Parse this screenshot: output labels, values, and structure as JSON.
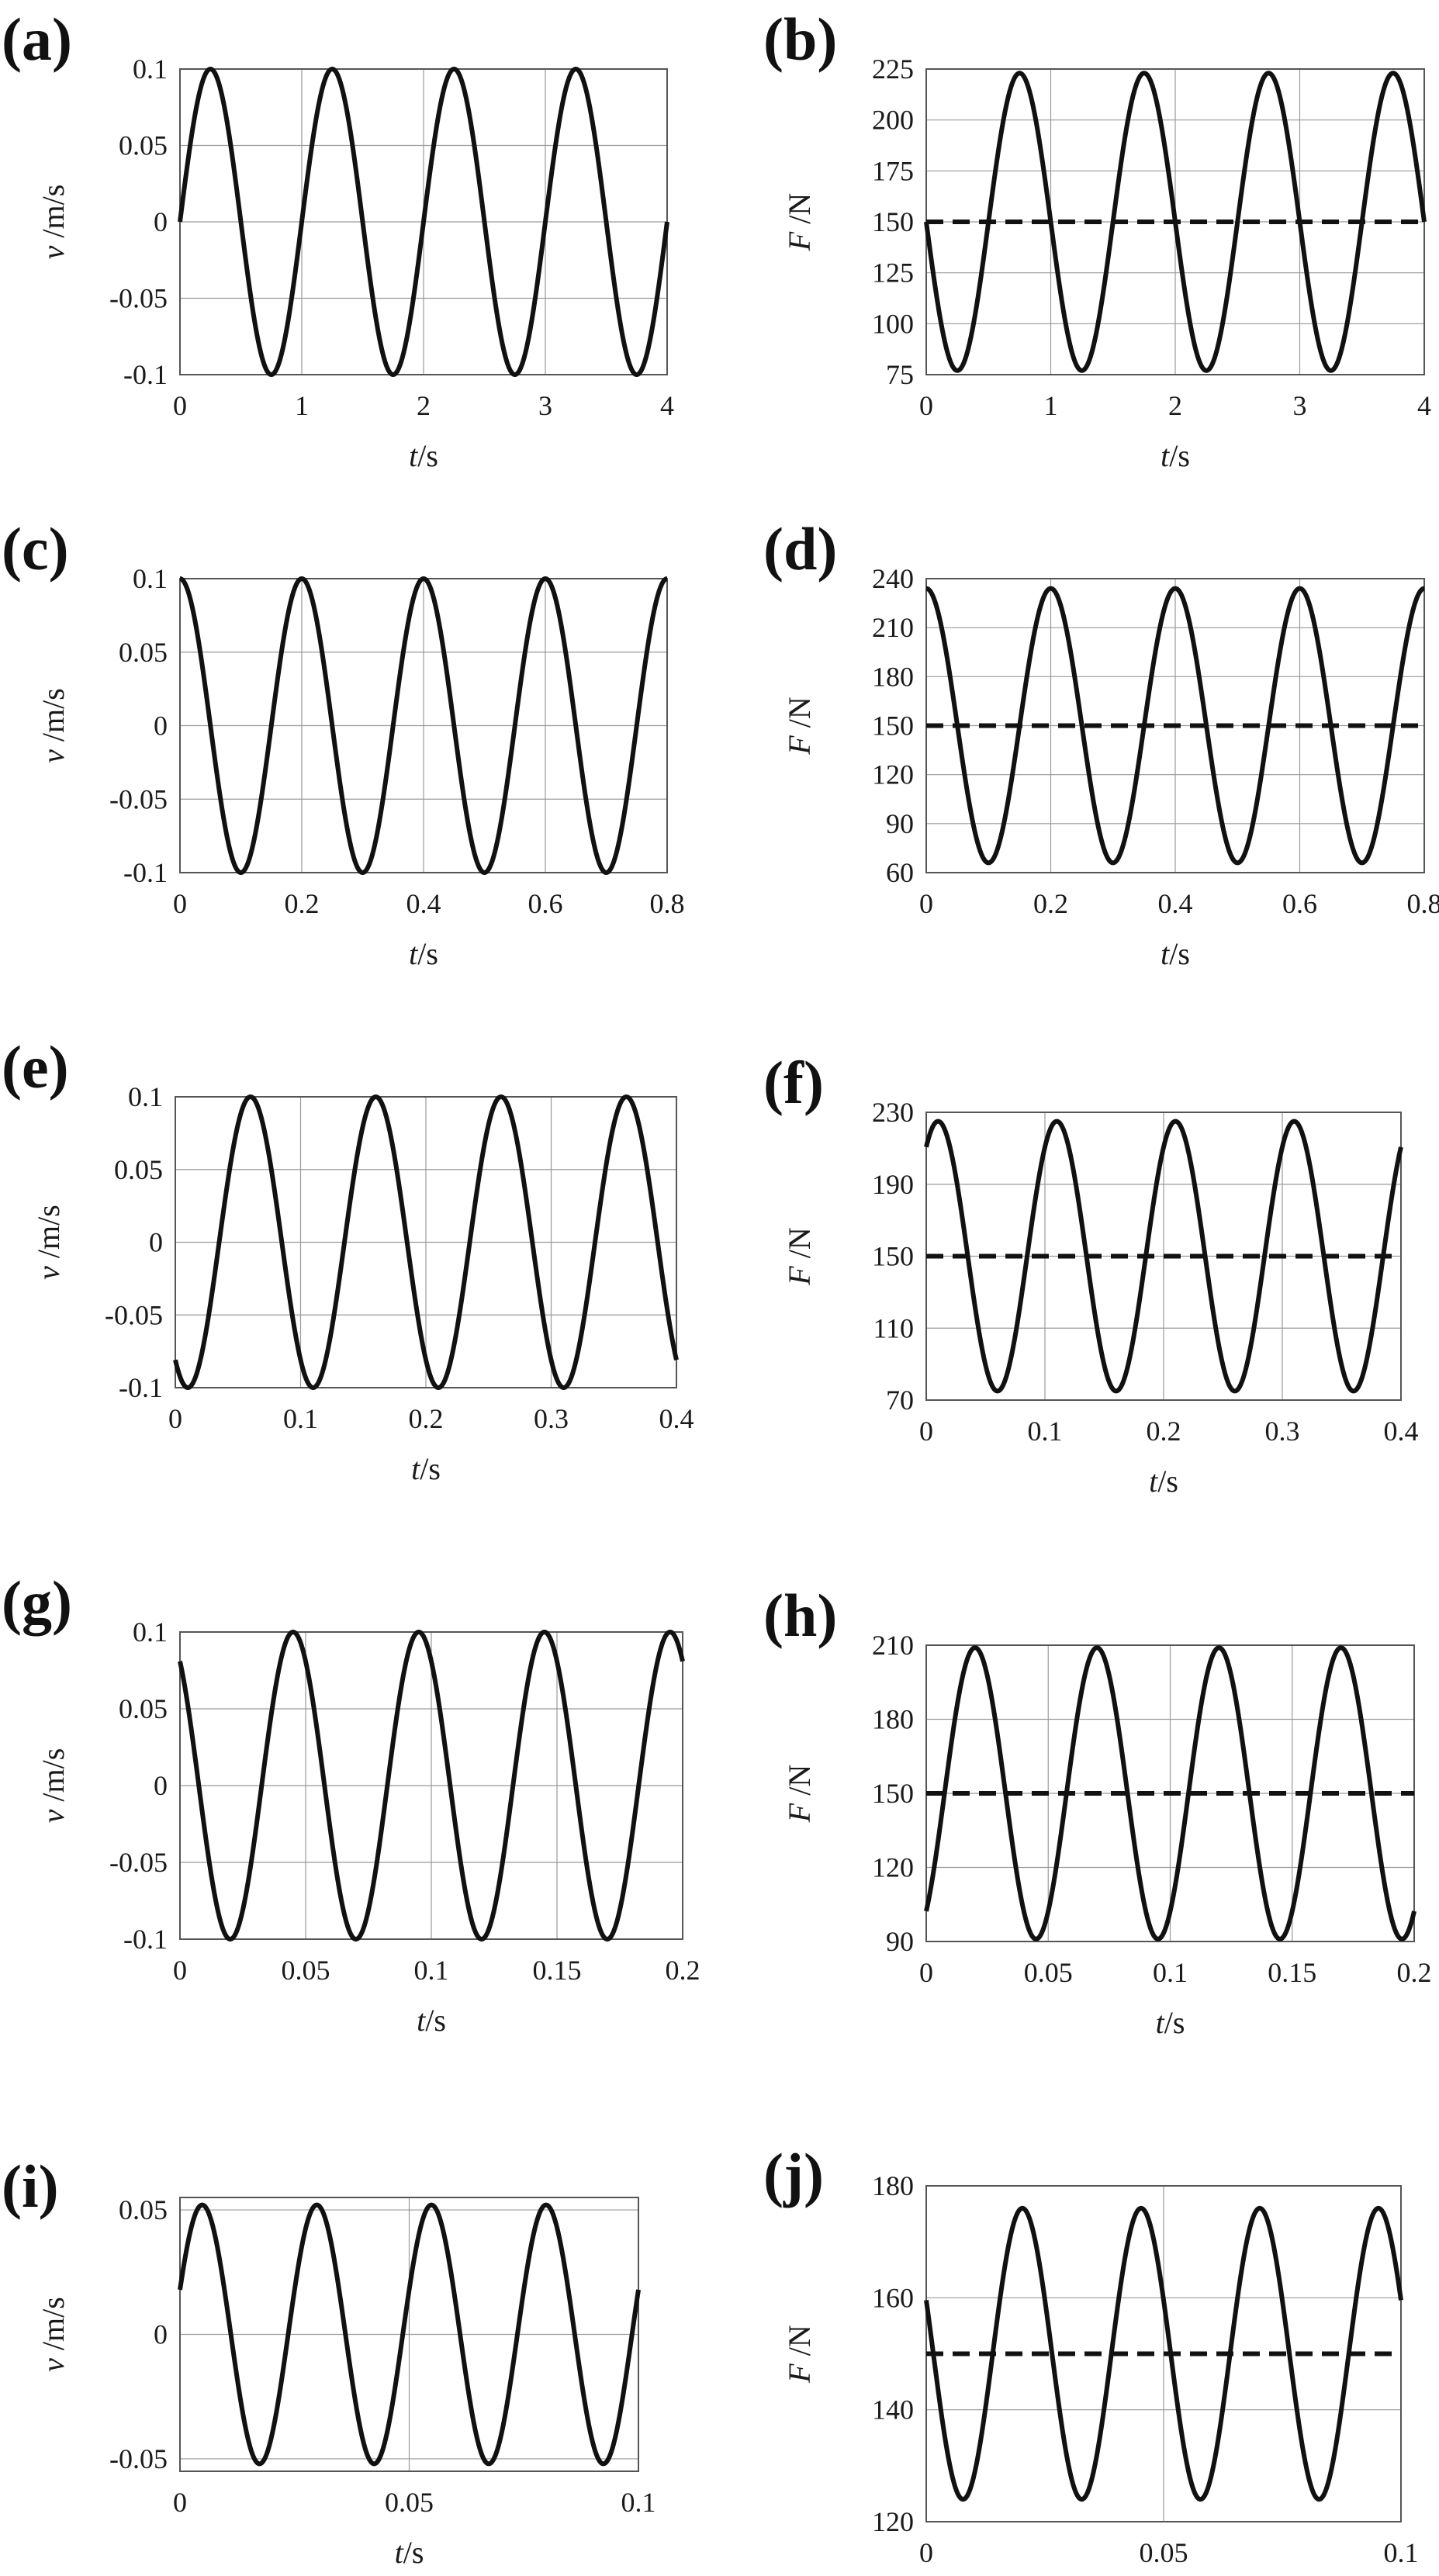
{
  "chart_data": [
    {
      "panel_label": "(a)",
      "type": "line",
      "xlabel_var": "t",
      "xlabel_unit": "/s",
      "ylabel_var": "v",
      "ylabel_unit": "/m/s",
      "xlim": [
        0,
        4
      ],
      "ylim": [
        -0.1,
        0.1
      ],
      "xticks": [
        "0",
        "1",
        "2",
        "3",
        "4"
      ],
      "yticks": [
        "0.1",
        "0.05",
        "0",
        "-0.05",
        "-0.1"
      ],
      "grid": true,
      "series": [
        {
          "kind": "sine",
          "amplitude": 0.1,
          "offset": 0,
          "period": 1.0,
          "phase_shift": 0.0,
          "x_range": [
            0,
            4
          ],
          "style": "solid"
        }
      ]
    },
    {
      "panel_label": "(b)",
      "type": "line",
      "xlabel_var": "t",
      "xlabel_unit": "/s",
      "ylabel_var": "F",
      "ylabel_unit": "/N",
      "xlim": [
        0,
        4
      ],
      "ylim": [
        75,
        225
      ],
      "xticks": [
        "0",
        "1",
        "2",
        "3",
        "4"
      ],
      "yticks": [
        "225",
        "200",
        "175",
        "150",
        "125",
        "100",
        "75"
      ],
      "grid": true,
      "series": [
        {
          "kind": "sine",
          "amplitude": 73,
          "offset": 150,
          "period": 1.0,
          "phase_shift": 0.5,
          "x_range": [
            0,
            4
          ],
          "style": "solid"
        },
        {
          "kind": "constant",
          "value": 150,
          "x_range": [
            0,
            4
          ],
          "style": "dashed"
        }
      ]
    },
    {
      "panel_label": "(c)",
      "type": "line",
      "xlabel_var": "t",
      "xlabel_unit": "/s",
      "ylabel_var": "v",
      "ylabel_unit": "/m/s",
      "xlim": [
        0,
        0.8
      ],
      "ylim": [
        -0.1,
        0.1
      ],
      "xticks": [
        "0",
        "0.2",
        "0.4",
        "0.6",
        "0.8"
      ],
      "yticks": [
        "0.1",
        "0.05",
        "0",
        "-0.05",
        "-0.1"
      ],
      "grid": true,
      "series": [
        {
          "kind": "sine",
          "amplitude": 0.1,
          "offset": 0,
          "period": 0.2,
          "phase_shift": -0.05,
          "x_range": [
            0,
            0.8
          ],
          "style": "solid"
        }
      ]
    },
    {
      "panel_label": "(d)",
      "type": "line",
      "xlabel_var": "t",
      "xlabel_unit": "/s",
      "ylabel_var": "F",
      "ylabel_unit": "/N",
      "xlim": [
        0,
        0.8
      ],
      "ylim": [
        60,
        240
      ],
      "xticks": [
        "0",
        "0.2",
        "0.4",
        "0.6",
        "0.8"
      ],
      "yticks": [
        "240",
        "210",
        "180",
        "150",
        "120",
        "90",
        "60"
      ],
      "grid": true,
      "series": [
        {
          "kind": "sine",
          "amplitude": 84,
          "offset": 150,
          "period": 0.2,
          "phase_shift": 0.15,
          "x_range": [
            0,
            0.8
          ],
          "style": "solid"
        },
        {
          "kind": "constant",
          "value": 150,
          "x_range": [
            0,
            0.8
          ],
          "style": "dashed"
        }
      ]
    },
    {
      "panel_label": "(e)",
      "type": "line",
      "xlabel_var": "t",
      "xlabel_unit": "/s",
      "ylabel_var": "v",
      "ylabel_unit": "/m/s",
      "xlim": [
        0,
        0.4
      ],
      "ylim": [
        -0.1,
        0.1
      ],
      "xticks": [
        "0",
        "0.1",
        "0.2",
        "0.3",
        "0.4"
      ],
      "yticks": [
        "0.1",
        "0.05",
        "0",
        "-0.05",
        "-0.1"
      ],
      "grid": true,
      "series": [
        {
          "kind": "sine",
          "amplitude": 0.1,
          "offset": 0,
          "period": 0.1,
          "phase_shift": 0.035,
          "x_range": [
            0,
            0.4
          ],
          "style": "solid"
        }
      ]
    },
    {
      "panel_label": "(f)",
      "type": "line",
      "xlabel_var": "t",
      "xlabel_unit": "/s",
      "ylabel_var": "F",
      "ylabel_unit": "/N",
      "xlim": [
        0,
        0.4
      ],
      "ylim": [
        70,
        230
      ],
      "xticks": [
        "0",
        "0.1",
        "0.2",
        "0.3",
        "0.4"
      ],
      "yticks": [
        "230",
        "190",
        "150",
        "110",
        "70"
      ],
      "grid": true,
      "series": [
        {
          "kind": "sine",
          "amplitude": 75,
          "offset": 150,
          "period": 0.1,
          "phase_shift": 0.085,
          "x_range": [
            0,
            0.4
          ],
          "style": "solid"
        },
        {
          "kind": "constant",
          "value": 150,
          "x_range": [
            0,
            0.4
          ],
          "style": "dashed"
        }
      ]
    },
    {
      "panel_label": "(g)",
      "type": "line",
      "xlabel_var": "t",
      "xlabel_unit": "/s",
      "ylabel_var": "v",
      "ylabel_unit": "/m/s",
      "xlim": [
        0,
        0.2
      ],
      "ylim": [
        -0.1,
        0.1
      ],
      "xticks": [
        "0",
        "0.05",
        "0.1",
        "0.15",
        "0.2"
      ],
      "yticks": [
        "0.1",
        "0.05",
        "0",
        "-0.05",
        "-0.1"
      ],
      "grid": true,
      "series": [
        {
          "kind": "sine",
          "amplitude": 0.1,
          "offset": 0,
          "period": 0.05,
          "phase_shift": 0.0325,
          "x_range": [
            0,
            0.2
          ],
          "style": "solid"
        }
      ]
    },
    {
      "panel_label": "(h)",
      "type": "line",
      "xlabel_var": "t",
      "xlabel_unit": "/s",
      "ylabel_var": "F",
      "ylabel_unit": "/N",
      "xlim": [
        0,
        0.2
      ],
      "ylim": [
        90,
        210
      ],
      "xticks": [
        "0",
        "0.05",
        "0.1",
        "0.15",
        "0.2"
      ],
      "yticks": [
        "210",
        "180",
        "150",
        "120",
        "90"
      ],
      "grid": true,
      "series": [
        {
          "kind": "sine",
          "amplitude": 59,
          "offset": 150,
          "period": 0.05,
          "phase_shift": 0.0075,
          "x_range": [
            0,
            0.2
          ],
          "style": "solid"
        },
        {
          "kind": "constant",
          "value": 150,
          "x_range": [
            0,
            0.2
          ],
          "style": "dashed"
        }
      ]
    },
    {
      "panel_label": "(i)",
      "type": "line",
      "xlabel_var": "t",
      "xlabel_unit": "/s",
      "ylabel_var": "v",
      "ylabel_unit": "/m/s",
      "xlim": [
        0,
        0.1
      ],
      "ylim": [
        -0.055,
        0.055
      ],
      "xticks": [
        "0",
        "0.05",
        "0.1"
      ],
      "yticks": [
        "0.05",
        "0",
        "-0.05"
      ],
      "grid": true,
      "series": [
        {
          "kind": "sine",
          "amplitude": 0.052,
          "offset": 0,
          "period": 0.025,
          "phase_shift": -0.0014,
          "x_range": [
            0,
            0.1
          ],
          "style": "solid"
        }
      ]
    },
    {
      "panel_label": "(j)",
      "type": "line",
      "xlabel_var": "t",
      "xlabel_unit": "/s",
      "ylabel_var": "F",
      "ylabel_unit": "/N",
      "xlim": [
        0,
        0.1
      ],
      "ylim": [
        120,
        180
      ],
      "xticks": [
        "0",
        "0.05",
        "0.1"
      ],
      "yticks": [
        "180",
        "160",
        "140",
        "120"
      ],
      "grid": true,
      "series": [
        {
          "kind": "sine",
          "amplitude": 26,
          "offset": 150,
          "period": 0.025,
          "phase_shift": 0.014,
          "x_range": [
            0,
            0.1
          ],
          "style": "solid"
        },
        {
          "kind": "constant",
          "value": 150,
          "x_range": [
            0,
            0.1
          ],
          "style": "dashed"
        }
      ]
    }
  ]
}
